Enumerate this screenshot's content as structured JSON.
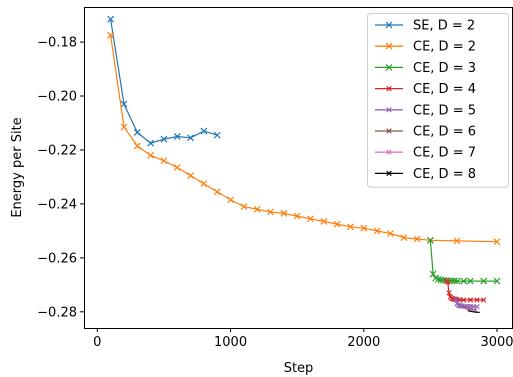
{
  "chart_data": {
    "type": "line",
    "title": "",
    "xlabel": "Step",
    "ylabel": "Energy per Site",
    "xlim": [
      -100,
      3120
    ],
    "ylim": [
      -0.286,
      -0.167
    ],
    "xticks": [
      0,
      1000,
      2000,
      3000
    ],
    "xtick_labels": [
      "0",
      "1000",
      "2000",
      "3000"
    ],
    "yticks": [
      -0.18,
      -0.2,
      -0.22,
      -0.24,
      -0.26,
      -0.28
    ],
    "ytick_labels": [
      "−0.18",
      "−0.20",
      "−0.22",
      "−0.24",
      "−0.26",
      "−0.28"
    ],
    "grid": false,
    "legend_position": "top-right",
    "series": [
      {
        "name": "SE, D = 2",
        "color": "#1f77b4",
        "x": [
          100,
          200,
          300,
          400,
          500,
          600,
          700,
          800,
          900
        ],
        "y": [
          -0.1715,
          -0.203,
          -0.2135,
          -0.2175,
          -0.216,
          -0.215,
          -0.2155,
          -0.213,
          -0.2145
        ]
      },
      {
        "name": "CE, D = 2",
        "color": "#ff7f0e",
        "x": [
          100,
          200,
          300,
          400,
          500,
          600,
          700,
          800,
          900,
          1000,
          1100,
          1200,
          1300,
          1400,
          1500,
          1600,
          1700,
          1800,
          1900,
          2000,
          2100,
          2200,
          2300,
          2400,
          2500,
          2700,
          3000
        ],
        "y": [
          -0.1775,
          -0.2115,
          -0.2185,
          -0.222,
          -0.224,
          -0.2265,
          -0.2295,
          -0.2325,
          -0.2355,
          -0.2385,
          -0.241,
          -0.242,
          -0.243,
          -0.2435,
          -0.2445,
          -0.2455,
          -0.2465,
          -0.2475,
          -0.2485,
          -0.249,
          -0.25,
          -0.251,
          -0.2525,
          -0.253,
          -0.2535,
          -0.2537,
          -0.254
        ]
      },
      {
        "name": "CE, D = 3",
        "color": "#2ca02c",
        "x": [
          2500,
          2520,
          2540,
          2560,
          2580,
          2600,
          2620,
          2640,
          2660,
          2680,
          2700,
          2750,
          2800,
          2900,
          3000
        ],
        "y": [
          -0.2535,
          -0.266,
          -0.2675,
          -0.268,
          -0.2682,
          -0.2683,
          -0.2684,
          -0.2685,
          -0.2685,
          -0.2685,
          -0.2686,
          -0.2686,
          -0.2686,
          -0.2686,
          -0.2686
        ]
      },
      {
        "name": "CE, D = 4",
        "color": "#d62728",
        "x": [
          2620,
          2630,
          2640,
          2650,
          2660,
          2670,
          2680,
          2690,
          2700,
          2720,
          2750,
          2800,
          2850,
          2900
        ],
        "y": [
          -0.2685,
          -0.269,
          -0.273,
          -0.2745,
          -0.275,
          -0.2752,
          -0.2753,
          -0.2754,
          -0.2755,
          -0.2755,
          -0.2756,
          -0.2756,
          -0.2756,
          -0.2756
        ]
      },
      {
        "name": "CE, D = 5",
        "color": "#9467bd",
        "x": [
          2690,
          2700,
          2710,
          2720,
          2730,
          2740,
          2760,
          2780,
          2800,
          2820,
          2850
        ],
        "y": [
          -0.2755,
          -0.277,
          -0.2775,
          -0.2777,
          -0.2778,
          -0.2779,
          -0.278,
          -0.278,
          -0.278,
          -0.2781,
          -0.2781
        ]
      },
      {
        "name": "CE, D = 6",
        "color": "#8c564b",
        "x": [
          2740,
          2760,
          2780,
          2800,
          2820,
          2850
        ],
        "y": [
          -0.278,
          -0.2785,
          -0.2788,
          -0.279,
          -0.2792,
          -0.2793
        ]
      },
      {
        "name": "CE, D = 7",
        "color": "#e377c2",
        "x": [
          2760,
          2780,
          2800,
          2820,
          2850
        ],
        "y": [
          -0.2788,
          -0.2792,
          -0.2795,
          -0.2797,
          -0.2798
        ]
      },
      {
        "name": "CE, D = 8",
        "color": "#000000",
        "x": [
          2780,
          2800,
          2820,
          2840,
          2870
        ],
        "y": [
          -0.2795,
          -0.2798,
          -0.28,
          -0.2801,
          -0.2802
        ]
      }
    ]
  }
}
